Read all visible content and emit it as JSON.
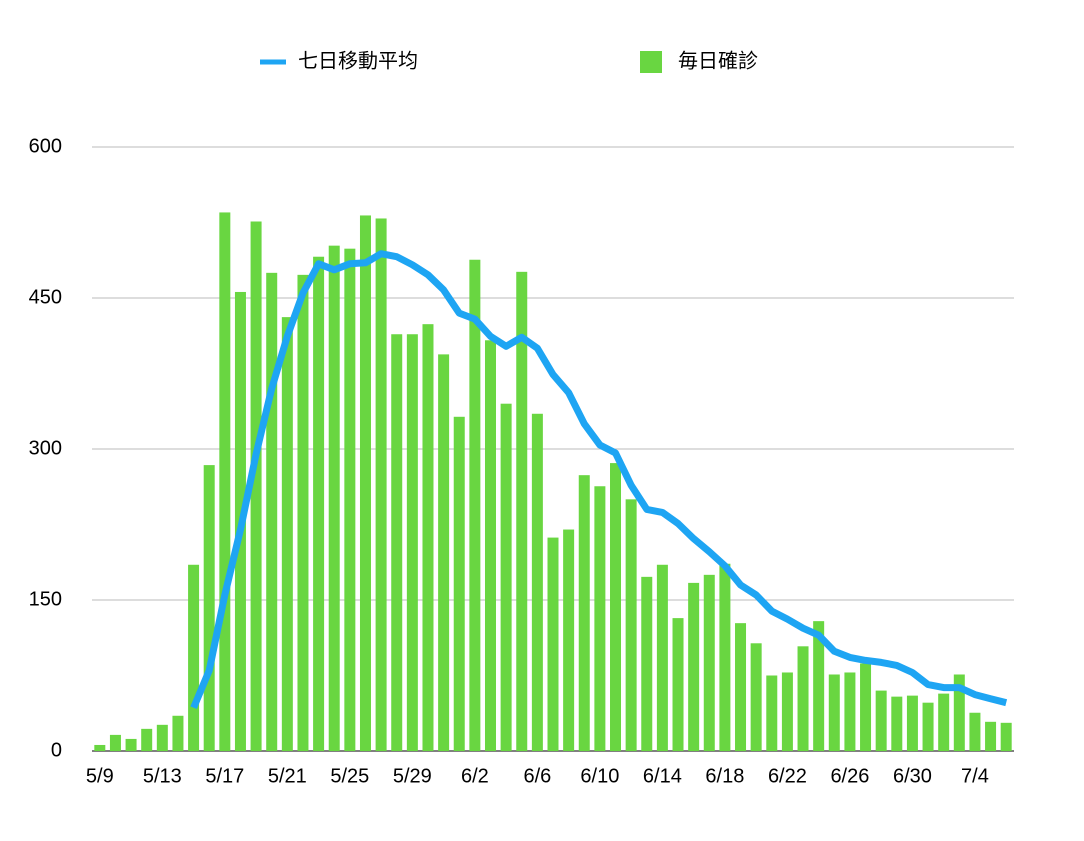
{
  "chart_data": {
    "type": "combo",
    "categories": [
      "5/9",
      null,
      null,
      null,
      "5/13",
      null,
      null,
      null,
      "5/17",
      null,
      null,
      null,
      "5/21",
      null,
      null,
      null,
      "5/25",
      null,
      null,
      null,
      "5/29",
      null,
      null,
      null,
      "6/2",
      null,
      null,
      null,
      "6/6",
      null,
      null,
      null,
      "6/10",
      null,
      null,
      null,
      "6/14",
      null,
      null,
      null,
      "6/18",
      null,
      null,
      null,
      "6/22",
      null,
      null,
      null,
      "6/26",
      null,
      null,
      null,
      "6/30",
      null,
      null,
      null,
      "7/4",
      null,
      null
    ],
    "series": [
      {
        "name": "七日移動平均",
        "type": "line",
        "color": "#1ea5f3",
        "values": [
          null,
          null,
          null,
          null,
          null,
          null,
          43,
          80,
          155,
          220,
          295,
          360,
          412,
          455,
          484,
          478,
          484,
          485,
          494,
          491,
          483,
          473,
          458,
          435,
          429,
          412,
          402,
          411,
          400,
          374,
          356,
          325,
          304,
          296,
          264,
          240,
          237,
          226,
          211,
          198,
          184,
          165,
          155,
          139,
          131,
          122,
          115,
          99,
          93,
          90,
          88,
          85,
          78,
          66,
          63,
          63,
          56,
          52,
          48
        ]
      },
      {
        "name": "毎日確診",
        "type": "bar",
        "color": "#69d641",
        "values": [
          6,
          16,
          12,
          22,
          26,
          35,
          185,
          284,
          535,
          456,
          526,
          475,
          431,
          473,
          491,
          502,
          499,
          532,
          529,
          414,
          414,
          424,
          394,
          332,
          488,
          408,
          345,
          476,
          335,
          212,
          220,
          274,
          263,
          286,
          250,
          173,
          185,
          132,
          167,
          175,
          186,
          127,
          107,
          75,
          78,
          104,
          129,
          76,
          78,
          87,
          60,
          54,
          55,
          48,
          57,
          76,
          38,
          29,
          28
        ]
      }
    ],
    "ylim": [
      0,
      600
    ],
    "yticks": [
      0,
      150,
      300,
      450,
      600
    ],
    "grid": true
  }
}
